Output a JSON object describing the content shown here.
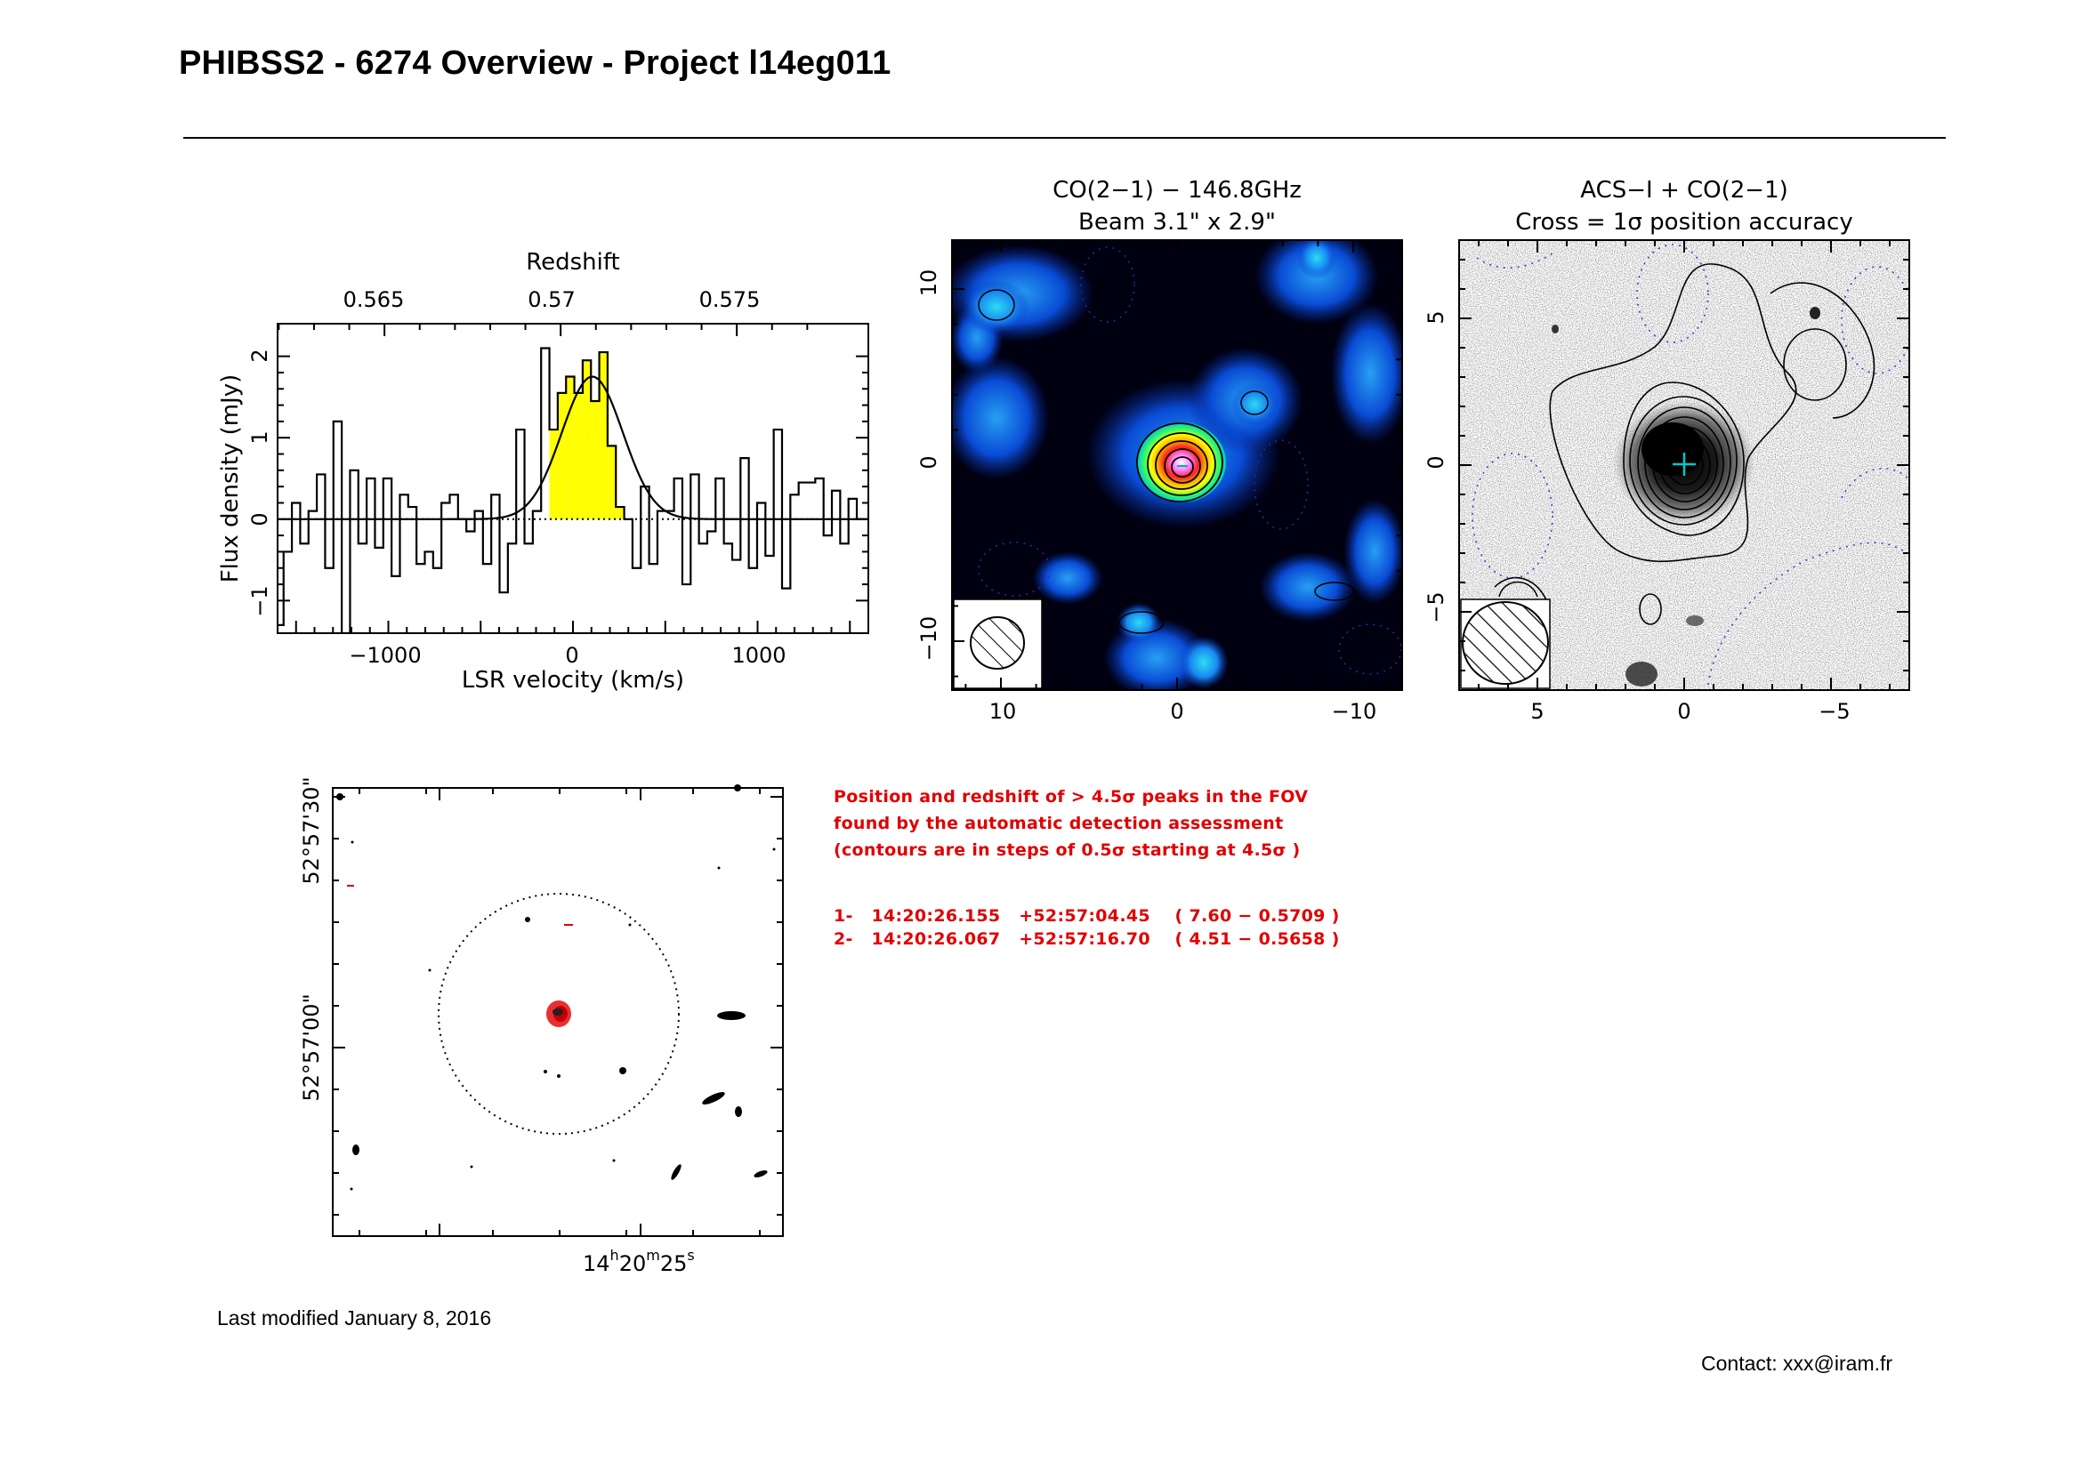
{
  "page": {
    "title": "PHIBSS2 - 6274 Overview - Project l14eg011",
    "last_modified": "Last modified January 8, 2016",
    "contact": "Contact: xxx@iram.fr"
  },
  "colors": {
    "line_fill": "#ffff00",
    "detection_text": "#e00000",
    "cross": "#00d0d0",
    "negative_contour": "#3a3ad0"
  },
  "spectrum": {
    "top_axis_label": "Redshift",
    "top_ticks": [
      "0.565",
      "0.57",
      "0.575"
    ],
    "xlabel": "LSR velocity (km/s)",
    "ylabel": "Flux density (mJy)",
    "x_ticks": [
      "−1000",
      "0",
      "1000"
    ],
    "y_ticks": [
      "−1",
      "0",
      "1",
      "2"
    ]
  },
  "co_map": {
    "title_line1": "CO(2−1) − 146.8GHz",
    "title_line2": "Beam 3.1\" x 2.9\"",
    "x_ticks": [
      "10",
      "0",
      "−10"
    ],
    "y_ticks": [
      "−10",
      "0",
      "10"
    ]
  },
  "acs_map": {
    "title_line1": "ACS−I + CO(2−1)",
    "title_line2": "Cross = 1σ position accuracy",
    "x_ticks": [
      "5",
      "0",
      "−5"
    ],
    "y_ticks": [
      "−5",
      "0",
      "5"
    ]
  },
  "fov_map": {
    "dec_ticks": [
      "52°57'30\"",
      "52°57'00\""
    ],
    "ra_tick": "14h20m25s",
    "ra_tick_parts": {
      "h": "14",
      "hs": "h",
      "m": "20",
      "ms": "m",
      "s": "25",
      "ss": "s"
    }
  },
  "detections": {
    "intro": [
      "Position and redshift of > 4.5σ peaks in the FOV",
      "found by the automatic detection assessment",
      "(contours are in steps of 0.5σ starting at 4.5σ )"
    ],
    "peaks": [
      "1-   14:20:26.155   +52:57:04.45    ( 7.60 − 0.5709 )",
      "2-   14:20:26.067   +52:57:16.70    ( 4.51 − 0.5658 )"
    ]
  },
  "chart_data": {
    "type": "line",
    "style": "histogram",
    "xlabel": "LSR velocity (km/s)",
    "ylabel": "Flux density (mJy)",
    "top_xlabel": "Redshift",
    "xlim": [
      -1600,
      1600
    ],
    "ylim": [
      -1.4,
      2.4
    ],
    "top_ticks": [
      0.565,
      0.57,
      0.575
    ],
    "x": [
      -1590,
      -1545,
      -1500,
      -1455,
      -1410,
      -1365,
      -1320,
      -1275,
      -1230,
      -1185,
      -1140,
      -1095,
      -1050,
      -1005,
      -960,
      -915,
      -870,
      -825,
      -780,
      -735,
      -690,
      -645,
      -600,
      -555,
      -510,
      -465,
      -420,
      -375,
      -330,
      -285,
      -240,
      -195,
      -150,
      -105,
      -60,
      -15,
      30,
      75,
      120,
      165,
      210,
      255,
      300,
      345,
      390,
      435,
      480,
      525,
      570,
      615,
      660,
      705,
      750,
      795,
      840,
      885,
      930,
      975,
      1020,
      1065,
      1110,
      1155,
      1200,
      1245,
      1290,
      1335,
      1380,
      1425,
      1470,
      1515,
      1560
    ],
    "y": [
      -1.3,
      -0.4,
      0.2,
      -0.3,
      0.1,
      0.55,
      -0.6,
      1.2,
      -1.4,
      0.6,
      -0.3,
      0.5,
      -0.35,
      0.5,
      -0.7,
      0.3,
      0.15,
      -0.55,
      -0.4,
      -0.6,
      0.2,
      0.3,
      0,
      -0.15,
      0.1,
      -0.55,
      0.3,
      -0.9,
      -0.3,
      1.1,
      -0.3,
      0.1,
      2.1,
      1.1,
      1.55,
      1.75,
      1.55,
      1.95,
      1.45,
      2.05,
      0.9,
      0.15,
      0,
      -0.6,
      0.4,
      -0.55,
      0.1,
      0.1,
      0.5,
      -0.8,
      0.55,
      -0.3,
      -0.15,
      0.5,
      -0.3,
      -0.5,
      0.75,
      -0.6,
      0.2,
      -0.45,
      1.1,
      -0.85,
      0.3,
      0.45,
      0.45,
      0.5,
      -0.2,
      0.35,
      -0.3,
      0.25,
      0
    ],
    "highlight_velocity_range": [
      -150,
      320
    ],
    "fit_gaussian": {
      "amplitude": 1.75,
      "center": 105,
      "fwhm": 390
    }
  }
}
